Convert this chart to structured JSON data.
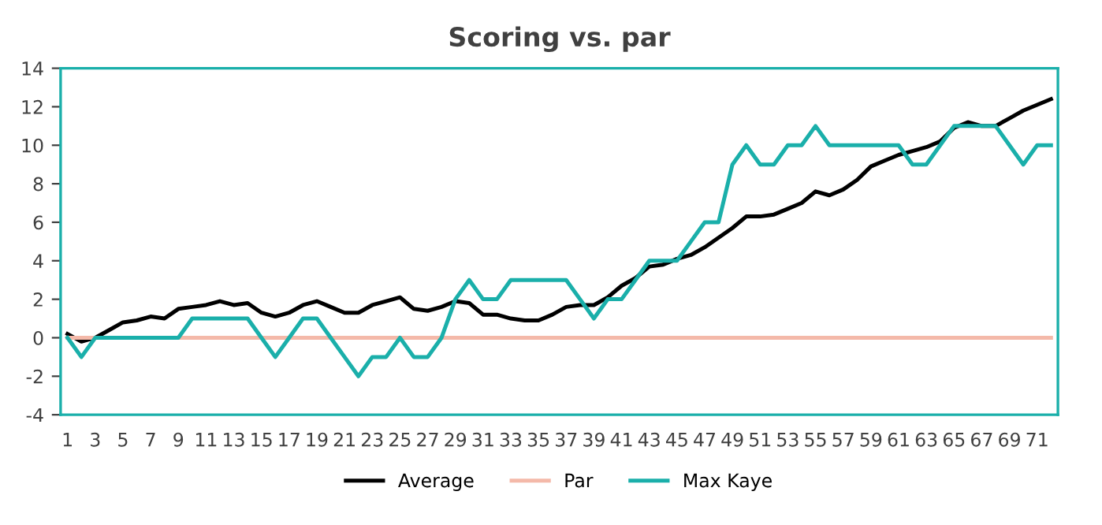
{
  "chart_data": {
    "type": "line",
    "title": "Scoring vs. par",
    "categories": [
      "1",
      null,
      "3",
      null,
      "5",
      null,
      "7",
      null,
      "9",
      null,
      "11",
      null,
      "13",
      null,
      "15",
      null,
      "17",
      null,
      "19",
      null,
      "21",
      null,
      "23",
      null,
      "25",
      null,
      "27",
      null,
      "29",
      null,
      "31",
      null,
      "33",
      null,
      "35",
      null,
      "37",
      null,
      "39",
      null,
      "41",
      null,
      "43",
      null,
      "45",
      null,
      "47",
      null,
      "49",
      null,
      "51",
      null,
      "53",
      null,
      "55",
      null,
      "57",
      null,
      "59",
      null,
      "61",
      null,
      "63",
      null,
      "65",
      null,
      "67",
      null,
      "69",
      null,
      "71",
      null
    ],
    "series": [
      {
        "name": "Average",
        "color": "#000000",
        "values": [
          0.2,
          -0.2,
          0.0,
          0.4,
          0.8,
          0.9,
          1.1,
          1.0,
          1.5,
          1.6,
          1.7,
          1.9,
          1.7,
          1.8,
          1.3,
          1.1,
          1.3,
          1.7,
          1.9,
          1.6,
          1.3,
          1.3,
          1.7,
          1.9,
          2.1,
          1.5,
          1.4,
          1.6,
          1.9,
          1.8,
          1.2,
          1.2,
          1.0,
          0.9,
          0.9,
          1.2,
          1.6,
          1.7,
          1.7,
          2.1,
          2.7,
          3.1,
          3.7,
          3.8,
          4.1,
          4.3,
          4.7,
          5.2,
          5.7,
          6.3,
          6.3,
          6.4,
          6.7,
          7.0,
          7.6,
          7.4,
          7.7,
          8.2,
          8.9,
          9.2,
          9.5,
          9.7,
          9.9,
          10.2,
          10.9,
          11.2,
          11.0,
          11.0,
          11.4,
          11.8,
          12.1,
          12.4
        ]
      },
      {
        "name": "Par",
        "color": "#f4b9a9",
        "values": [
          0,
          0,
          0,
          0,
          0,
          0,
          0,
          0,
          0,
          0,
          0,
          0,
          0,
          0,
          0,
          0,
          0,
          0,
          0,
          0,
          0,
          0,
          0,
          0,
          0,
          0,
          0,
          0,
          0,
          0,
          0,
          0,
          0,
          0,
          0,
          0,
          0,
          0,
          0,
          0,
          0,
          0,
          0,
          0,
          0,
          0,
          0,
          0,
          0,
          0,
          0,
          0,
          0,
          0,
          0,
          0,
          0,
          0,
          0,
          0,
          0,
          0,
          0,
          0,
          0,
          0,
          0,
          0,
          0,
          0,
          0,
          0
        ]
      },
      {
        "name": "Max Kaye",
        "color": "#1aafaa",
        "values": [
          0,
          -1,
          0,
          0,
          0,
          0,
          0,
          0,
          0,
          1,
          1,
          1,
          1,
          1,
          0,
          -1,
          0,
          1,
          1,
          0,
          -1,
          -2,
          -1,
          -1,
          0,
          -1,
          -1,
          0,
          2,
          3,
          2,
          2,
          3,
          3,
          3,
          3,
          3,
          2,
          1,
          2,
          2,
          3,
          4,
          4,
          4,
          5,
          6,
          6,
          9,
          10,
          9,
          9,
          10,
          10,
          11,
          10,
          10,
          10,
          10,
          10,
          10,
          9,
          9,
          10,
          11,
          11,
          11,
          11,
          10,
          9,
          10,
          10
        ]
      }
    ],
    "ylim": [
      -4,
      14
    ],
    "yticks": [
      -4,
      -2,
      0,
      2,
      4,
      6,
      8,
      10,
      12,
      14
    ],
    "grid": false,
    "legend": "bottom",
    "marker": "none",
    "line_style": "solid"
  }
}
